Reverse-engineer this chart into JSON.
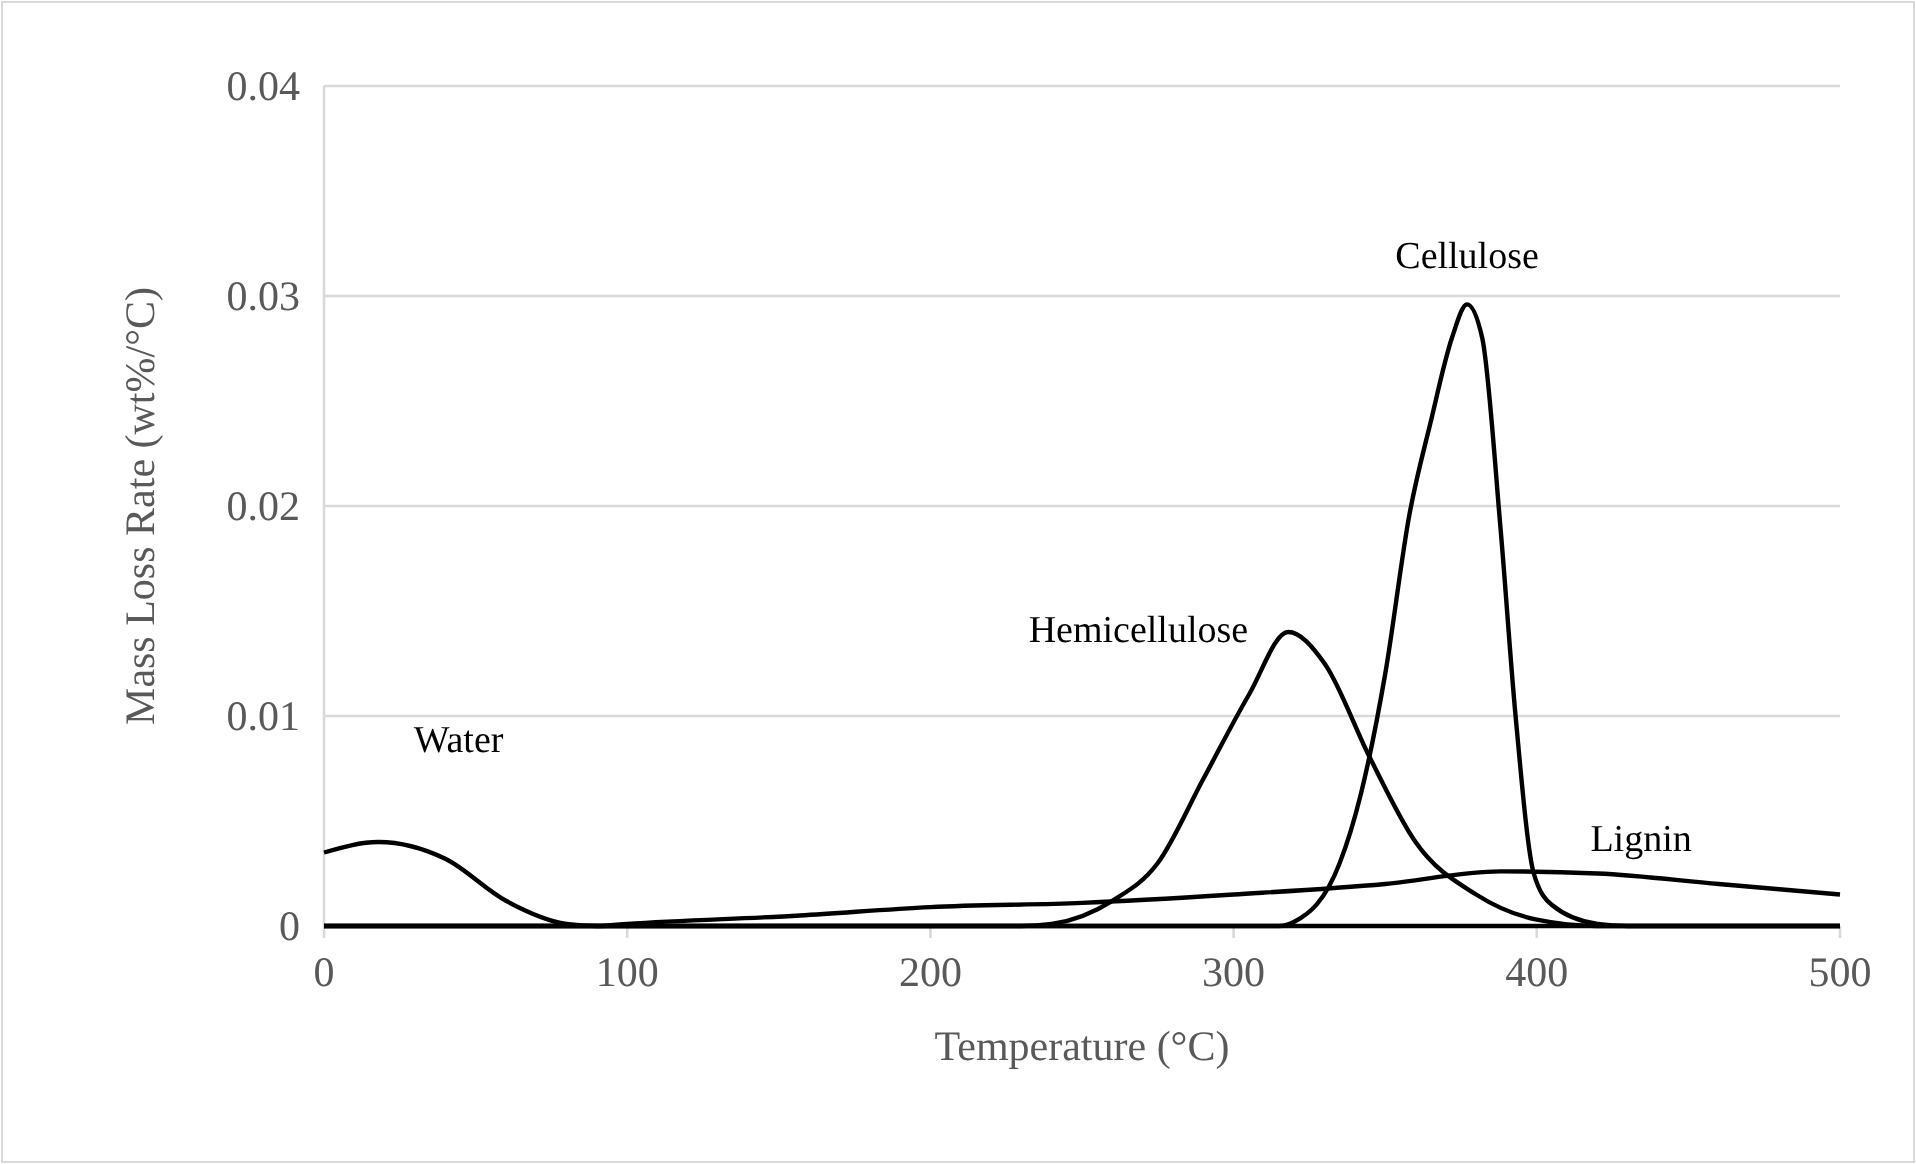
{
  "chart_data": {
    "type": "line",
    "xlabel": "Temperature (°C)",
    "ylabel": "Mass Loss Rate (wt%/°C)",
    "xlim": [
      0,
      500
    ],
    "ylim": [
      0,
      0.04
    ],
    "xticks": [
      0,
      100,
      200,
      300,
      400,
      500
    ],
    "yticks": [
      0,
      0.01,
      0.02,
      0.03,
      0.04
    ],
    "grid": "y",
    "marker": "none",
    "line_style": "solid",
    "series": [
      {
        "name": "Water",
        "color": "#000000",
        "x": [
          0,
          18,
          40,
          60,
          80,
          90,
          200,
          300,
          400,
          500
        ],
        "values": [
          0.0035,
          0.004,
          0.0032,
          0.0012,
          0.0001,
          0,
          0,
          0,
          0,
          0
        ]
      },
      {
        "name": "Hemicellulose",
        "color": "#000000",
        "x": [
          0,
          100,
          200,
          230,
          240,
          260,
          275,
          290,
          305,
          318,
          330,
          345,
          360,
          380,
          400,
          420,
          500
        ],
        "values": [
          0,
          0,
          0,
          0,
          0.0001,
          0.0012,
          0.003,
          0.007,
          0.011,
          0.014,
          0.0125,
          0.008,
          0.004,
          0.0015,
          0.0003,
          0,
          0
        ]
      },
      {
        "name": "Cellulose",
        "color": "#000000",
        "x": [
          0,
          100,
          200,
          300,
          315,
          320,
          335,
          342,
          350,
          358,
          365,
          372,
          377,
          382,
          388,
          393,
          399,
          405,
          420,
          430,
          500
        ],
        "values": [
          0,
          0,
          0,
          0,
          0,
          0.0002,
          0.003,
          0.0063,
          0.012,
          0.0196,
          0.024,
          0.028,
          0.0296,
          0.028,
          0.019,
          0.01,
          0.0025,
          0.001,
          0.0001,
          0,
          0
        ]
      },
      {
        "name": "Lignin",
        "color": "#000000",
        "x": [
          0,
          90,
          100,
          157,
          200,
          250,
          300,
          350,
          388,
          420,
          460,
          500
        ],
        "values": [
          0,
          0,
          0.0001,
          0.0005,
          0.0009,
          0.0011,
          0.0015,
          0.002,
          0.0026,
          0.0025,
          0.002,
          0.0015
        ]
      }
    ]
  }
}
